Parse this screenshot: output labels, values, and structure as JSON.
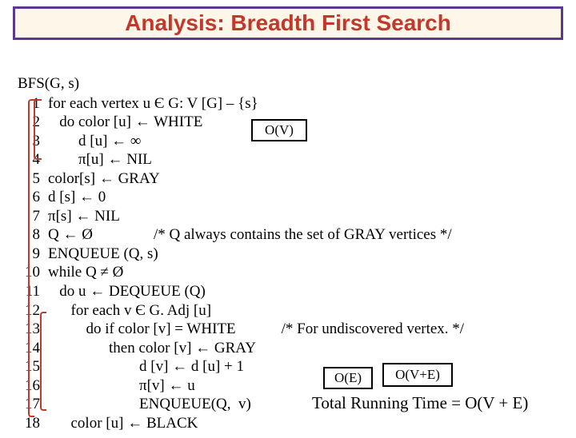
{
  "title": "Analysis: Breadth First Search",
  "colors": {
    "title_border": "#5b3a8e",
    "title_bg": "#fdf6e9",
    "title_text": "#c0392b",
    "bracket": "#c0392b",
    "text": "#000000",
    "background": "#ffffff"
  },
  "typography": {
    "title_fontsize": 28,
    "body_fontsize": 19,
    "box_fontsize": 17,
    "total_fontsize": 21
  },
  "fnhead": "BFS(G, s)",
  "lines": [
    {
      "n": "1",
      "t": "for each vertex u Є G: V [G] – {s}"
    },
    {
      "n": "2",
      "t": "   do color [u] ← WHITE"
    },
    {
      "n": "3",
      "t": "        d [u] ← ∞"
    },
    {
      "n": "4",
      "t": "        π[u] ← NIL"
    },
    {
      "n": "5",
      "t": "color[s] ← GRAY"
    },
    {
      "n": "6",
      "t": "d [s] ← 0"
    },
    {
      "n": "7",
      "t": "π[s] ← NIL"
    },
    {
      "n": "8",
      "t": "Q ← Ø                /* Q always contains the set of GRAY vertices */"
    },
    {
      "n": "9",
      "t": "ENQUEUE (Q, s)"
    },
    {
      "n": "10",
      "t": "while Q ≠ Ø"
    },
    {
      "n": "11",
      "t": "   do u ← DEQUEUE (Q)"
    },
    {
      "n": "12",
      "t": "      for each v Є G. Adj [u]"
    },
    {
      "n": "13",
      "t": "          do if color [v] = WHITE            /* For undiscovered vertex. */"
    },
    {
      "n": "14",
      "t": "                then color [v] ← GRAY"
    },
    {
      "n": "15",
      "t": "                        d [v] ← d [u] + 1"
    },
    {
      "n": "16",
      "t": "                        π[v] ← u"
    },
    {
      "n": "17",
      "t": "                        ENQUEUE(Q,  v)"
    },
    {
      "n": "18",
      "t": "      color [u] ← BLACK"
    }
  ],
  "boxes": {
    "ov": "O(V)",
    "oe": "O(E)",
    "ove": "O(V+E)"
  },
  "total": "Total Running Time = O(V + E)"
}
